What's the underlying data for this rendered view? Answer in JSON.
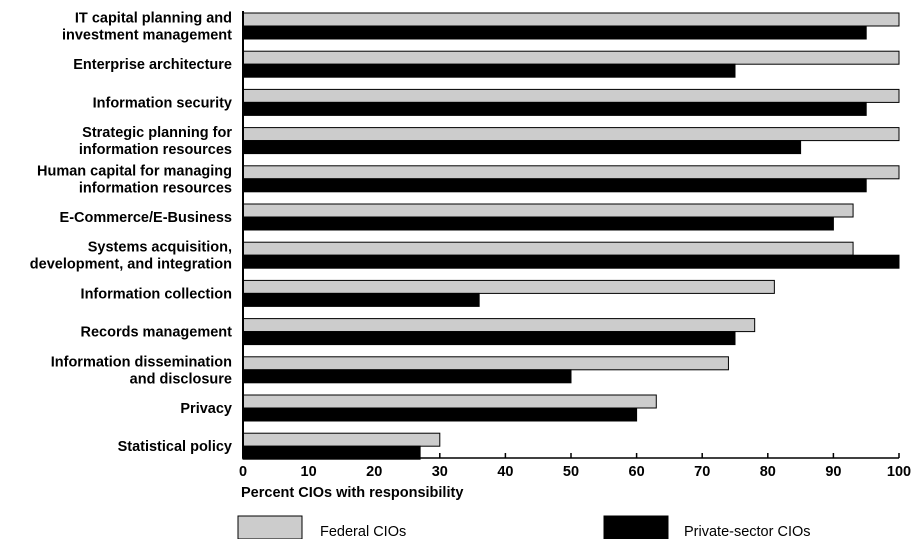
{
  "chart_data": {
    "type": "bar",
    "orientation": "horizontal",
    "categories": [
      [
        "IT capital planning and",
        "investment management"
      ],
      [
        "Enterprise architecture"
      ],
      [
        "Information security"
      ],
      [
        "Strategic planning for",
        "information resources"
      ],
      [
        "Human capital for managing",
        "information resources"
      ],
      [
        "E-Commerce/E-Business"
      ],
      [
        "Systems acquisition,",
        "development, and integration"
      ],
      [
        "Information collection"
      ],
      [
        "Records management"
      ],
      [
        "Information dissemination",
        "and disclosure"
      ],
      [
        "Privacy"
      ],
      [
        "Statistical policy"
      ]
    ],
    "series": [
      {
        "name": "Federal CIOs",
        "color": "#cccccc",
        "values": [
          100,
          100,
          100,
          100,
          100,
          93,
          93,
          81,
          78,
          74,
          63,
          30
        ]
      },
      {
        "name": "Private-sector CIOs",
        "color": "#000000",
        "values": [
          95,
          75,
          95,
          85,
          95,
          90,
          100,
          36,
          75,
          50,
          60,
          27
        ]
      }
    ],
    "xlabel": "Percent CIOs with responsibility",
    "xlim": [
      0,
      100
    ],
    "xticks": [
      0,
      10,
      20,
      30,
      40,
      50,
      60,
      70,
      80,
      90,
      100
    ],
    "grid": false,
    "legend": "bottom"
  }
}
